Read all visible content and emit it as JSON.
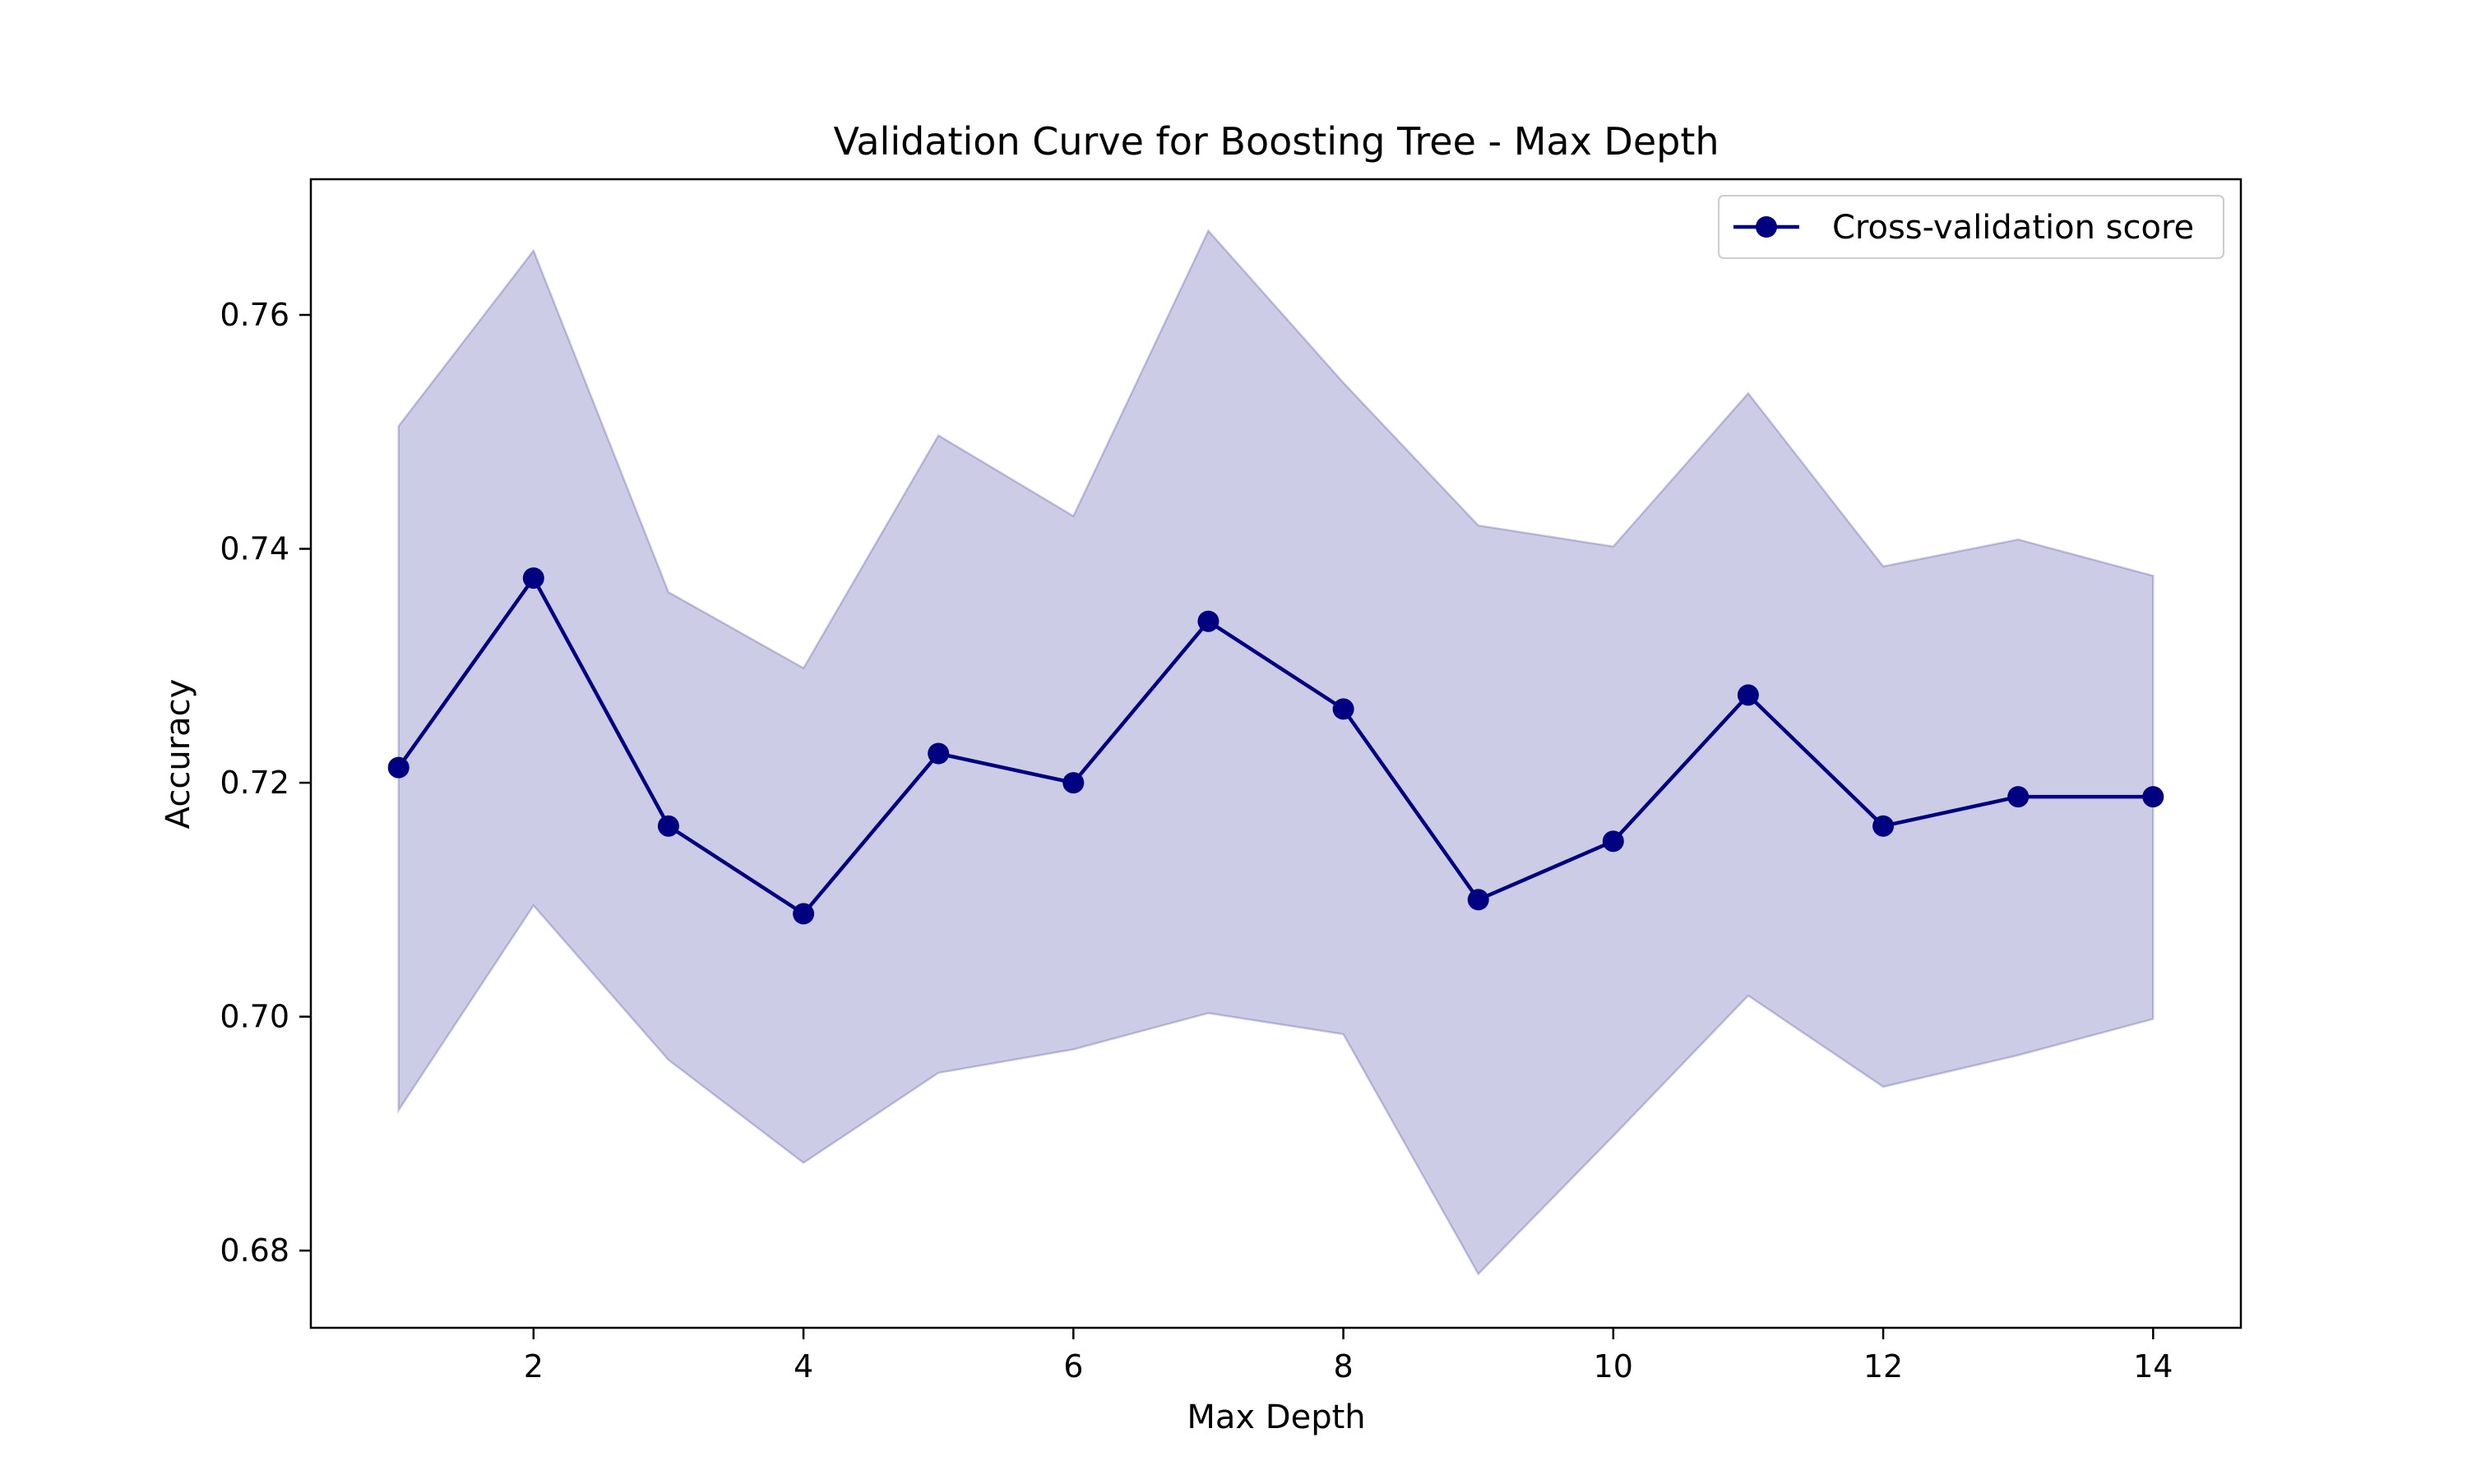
{
  "chart_data": {
    "type": "line",
    "title": "Validation Curve for Boosting Tree - Max Depth",
    "xlabel": "Max Depth",
    "ylabel": "Accuracy",
    "xlim": [
      0.35,
      14.65
    ],
    "ylim": [
      0.6734,
      0.7716
    ],
    "x_ticks": [
      2,
      4,
      6,
      8,
      10,
      12,
      14
    ],
    "x_tick_labels": [
      "2",
      "4",
      "6",
      "8",
      "10",
      "12",
      "14"
    ],
    "y_ticks": [
      0.68,
      0.7,
      0.72,
      0.74,
      0.76
    ],
    "y_tick_labels": [
      "0.68",
      "0.70",
      "0.72",
      "0.74",
      "0.76"
    ],
    "x": [
      1,
      2,
      3,
      4,
      5,
      6,
      7,
      8,
      9,
      10,
      11,
      12,
      13,
      14
    ],
    "series": [
      {
        "name": "Cross-validation score",
        "color": "#000080",
        "marker": "circle",
        "values": [
          0.7213,
          0.7375,
          0.7163,
          0.7088,
          0.7225,
          0.72,
          0.7338,
          0.7263,
          0.71,
          0.715,
          0.7275,
          0.7163,
          0.7188,
          0.7188
        ]
      }
    ],
    "band": {
      "color": "#000080",
      "opacity": 0.2,
      "lower": [
        0.692,
        0.7095,
        0.6963,
        0.6875,
        0.6952,
        0.6972,
        0.7003,
        0.6985,
        0.678,
        0.6898,
        0.7018,
        0.694,
        0.6967,
        0.6998
      ],
      "upper": [
        0.7505,
        0.7655,
        0.7363,
        0.7298,
        0.7497,
        0.7428,
        0.7672,
        0.7542,
        0.742,
        0.7402,
        0.7533,
        0.7385,
        0.7408,
        0.7377
      ]
    },
    "legend": {
      "position": "top-right",
      "entries": [
        "Cross-validation score"
      ]
    },
    "grid": false
  }
}
